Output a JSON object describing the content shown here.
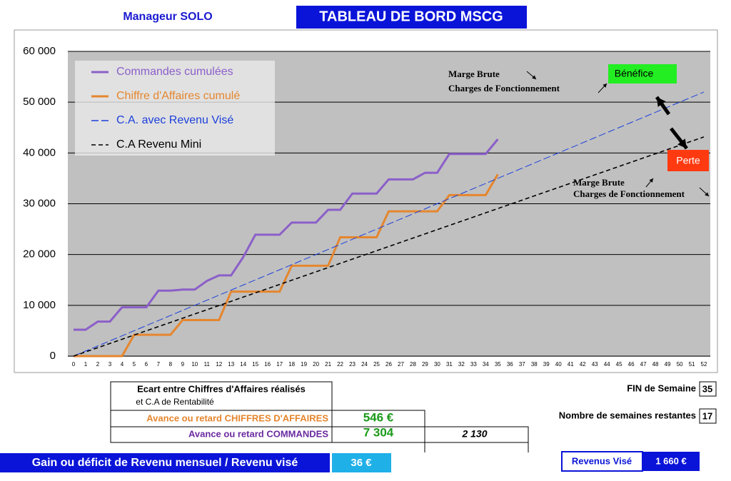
{
  "header": {
    "left": "Manageur SOLO",
    "title": "TABLEAU DE BORD MSCG"
  },
  "chart_data": {
    "type": "line",
    "x": [
      0,
      1,
      2,
      3,
      4,
      5,
      6,
      7,
      8,
      9,
      10,
      11,
      12,
      13,
      14,
      15,
      16,
      17,
      18,
      19,
      20,
      21,
      22,
      23,
      24,
      25,
      26,
      27,
      28,
      29,
      30,
      31,
      32,
      33,
      34,
      35,
      36,
      37,
      38,
      39,
      40,
      41,
      42,
      43,
      44,
      45,
      46,
      47,
      48,
      49,
      50,
      51,
      52
    ],
    "xlim": [
      0,
      52
    ],
    "xticks": [
      0,
      1,
      2,
      3,
      4,
      5,
      6,
      7,
      8,
      9,
      10,
      11,
      12,
      13,
      14,
      15,
      16,
      17,
      18,
      19,
      20,
      21,
      22,
      23,
      24,
      25,
      26,
      27,
      28,
      29,
      30,
      31,
      32,
      33,
      34,
      35,
      36,
      37,
      38,
      39,
      40,
      41,
      42,
      43,
      44,
      45,
      46,
      47,
      48,
      49,
      50,
      51,
      52
    ],
    "ylim": [
      0,
      60000
    ],
    "yticks": [
      0,
      {
        "value": 10000,
        "label": "10 000"
      },
      {
        "value": 20000,
        "label": "20 000"
      },
      {
        "value": 30000,
        "label": "30 000"
      },
      {
        "value": 40000,
        "label": "40 000"
      },
      {
        "value": 50000,
        "label": "50 000"
      },
      {
        "value": 60000,
        "label": "60 000"
      }
    ],
    "grid": true,
    "legend": "upper left",
    "series": [
      {
        "name": "Commandes cumulées",
        "color": "#8b5fc9",
        "linestyle": "solid",
        "width": 3,
        "values": [
          5200,
          5200,
          6800,
          6800,
          9600,
          9600,
          9600,
          12900,
          12900,
          13100,
          13100,
          14800,
          15900,
          15900,
          19500,
          23900,
          23900,
          23900,
          26300,
          26300,
          26300,
          28800,
          28800,
          32000,
          32000,
          32000,
          34800,
          34800,
          34800,
          36100,
          36100,
          39800,
          39800,
          39800,
          39800,
          42700,
          null,
          null,
          null,
          null,
          null,
          null,
          null,
          null,
          null,
          null,
          null,
          null,
          null,
          null,
          null,
          null,
          null
        ]
      },
      {
        "name": "Chiffre d'Affaires cumulé",
        "color": "#e5862e",
        "linestyle": "solid",
        "width": 3,
        "values": [
          0,
          0,
          0,
          0,
          0,
          4200,
          4200,
          4200,
          4200,
          7100,
          7100,
          7100,
          7100,
          12700,
          12700,
          12700,
          12700,
          12700,
          17800,
          17800,
          17800,
          17800,
          23400,
          23400,
          23400,
          23400,
          28500,
          28500,
          28500,
          28500,
          28500,
          31700,
          31700,
          31700,
          31700,
          35800,
          null,
          null,
          null,
          null,
          null,
          null,
          null,
          null,
          null,
          null,
          null,
          null,
          null,
          null,
          null,
          null,
          null
        ]
      },
      {
        "name": "C.A. avec Revenu Visé",
        "color": "#1a3fdc",
        "linestyle": "long-dash",
        "width": 1,
        "values": [
          0,
          1000,
          2000,
          3000,
          4000,
          5000,
          6000,
          7000,
          8000,
          9000,
          10000,
          11000,
          12000,
          13000,
          14000,
          15000,
          16000,
          17000,
          18000,
          19000,
          20000,
          21000,
          22000,
          23000,
          24000,
          25000,
          26000,
          27000,
          28000,
          29000,
          30000,
          31000,
          32000,
          33000,
          34000,
          35000,
          36000,
          37000,
          38000,
          39000,
          40000,
          41000,
          42000,
          43000,
          44000,
          45000,
          46000,
          47000,
          48000,
          49000,
          50000,
          51000,
          52000
        ]
      },
      {
        "name": "C.A Revenu Mini",
        "color": "#000000",
        "linestyle": "dashed",
        "width": 1.6,
        "values": [
          0,
          830,
          1660,
          2490,
          3320,
          4150,
          4980,
          5810,
          6640,
          7470,
          8300,
          9130,
          9960,
          10790,
          11620,
          12450,
          13280,
          14110,
          14940,
          15770,
          16600,
          17430,
          18260,
          19090,
          19920,
          20750,
          21580,
          22410,
          23240,
          24070,
          24900,
          25730,
          26560,
          27390,
          28220,
          29050,
          29880,
          30710,
          31540,
          32370,
          33200,
          34030,
          34860,
          35690,
          36520,
          37350,
          38180,
          39010,
          39840,
          40670,
          41500,
          42330,
          43160
        ]
      }
    ],
    "annotations": [
      "Marge Brute",
      "Charges de Fonctionnement",
      "Bénéfice",
      "Marge Brute",
      "Charges de Fonctionnement",
      "Perte"
    ]
  },
  "summary": {
    "ecart_line1": "Ecart entre  Chiffres d'Affaires réalisés",
    "ecart_line2": "et  C.A de Rentabilité",
    "ca_label": "Avance ou retard CHIFFRES D'AFFAIRES",
    "ca_value": "546 €",
    "cmd_label": "Avance ou retard  COMMANDES",
    "cmd_value": "7 304",
    "cmd_value2": "2 130",
    "week_label": "FIN de Semaine",
    "week_value": "35",
    "remaining_label": "Nombre de semaines restantes",
    "remaining_value": "17",
    "gain_label": "Gain ou déficit de Revenu mensuel / Revenu visé",
    "gain_value": "36 €",
    "target_label": "Revenus Visé",
    "target_value": "1 660 €"
  }
}
